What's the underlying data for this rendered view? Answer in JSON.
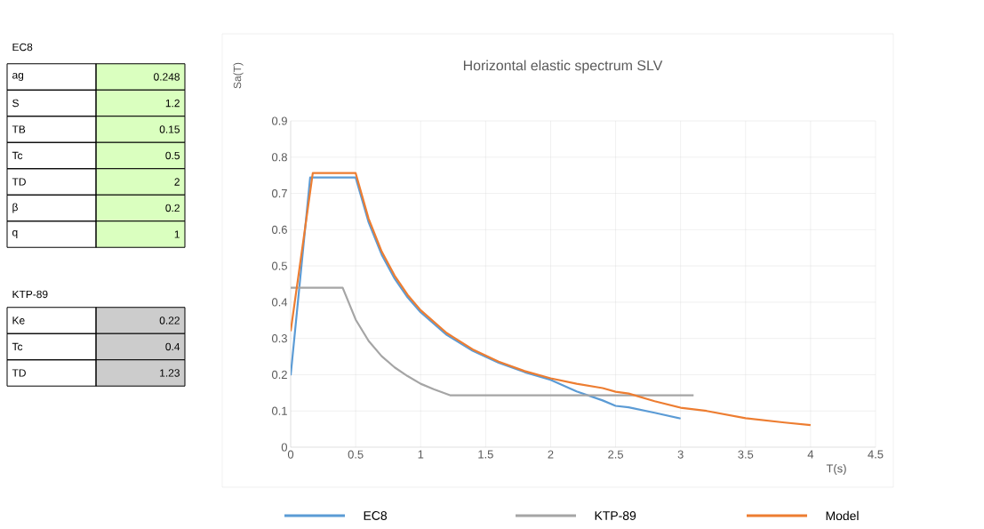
{
  "chart_data": {
    "type": "line",
    "title": "Horizontal elastic spectrum SLV",
    "xlabel": "T(s)",
    "ylabel": "Sa(T)",
    "xlim": [
      0,
      4.5
    ],
    "xticks": [
      0,
      0.5,
      1,
      1.5,
      2,
      2.5,
      3,
      3.5,
      4,
      4.5
    ],
    "ylim": [
      0,
      0.9
    ],
    "yticks": [
      0,
      0.1,
      0.2,
      0.3,
      0.4,
      0.5,
      0.6,
      0.7,
      0.8,
      0.9
    ],
    "grid": true,
    "legend": "bottom",
    "marker": "none",
    "line_style": "solid",
    "series": [
      {
        "name": "EC8",
        "color": "#5b9bd5",
        "x": [
          0,
          0.15,
          0.5,
          0.6,
          0.7,
          0.8,
          0.9,
          1,
          1.2,
          1.4,
          1.6,
          1.8,
          2,
          2.2,
          2.4,
          2.5,
          2.6,
          2.8,
          3
        ],
        "values": [
          0.198,
          0.744,
          0.744,
          0.62,
          0.531,
          0.465,
          0.413,
          0.372,
          0.31,
          0.266,
          0.233,
          0.207,
          0.186,
          0.154,
          0.129,
          0.114,
          0.11,
          0.095,
          0.079
        ]
      },
      {
        "name": "KTP-89",
        "color": "#a5a5a5",
        "x": [
          0,
          0.4,
          0.5,
          0.6,
          0.7,
          0.8,
          0.9,
          1,
          1.1,
          1.23,
          3.1
        ],
        "values": [
          0.44,
          0.44,
          0.352,
          0.293,
          0.251,
          0.22,
          0.196,
          0.175,
          0.16,
          0.143,
          0.143
        ]
      },
      {
        "name": "Model",
        "color": "#ed7d31",
        "x": [
          0,
          0.17,
          0.5,
          0.6,
          0.7,
          0.8,
          0.9,
          1,
          1.2,
          1.4,
          1.6,
          1.8,
          2,
          2.2,
          2.4,
          2.5,
          2.6,
          2.8,
          3,
          3.2,
          3.5,
          3.8,
          4
        ],
        "values": [
          0.32,
          0.756,
          0.756,
          0.63,
          0.54,
          0.473,
          0.42,
          0.378,
          0.315,
          0.27,
          0.236,
          0.21,
          0.19,
          0.175,
          0.163,
          0.153,
          0.148,
          0.127,
          0.109,
          0.1,
          0.08,
          0.068,
          0.061
        ]
      }
    ],
    "annotations": [
      "EC8",
      "ag",
      "0.248",
      "S",
      "1.2",
      "TB",
      "0.15",
      "Tc",
      "0.5",
      "TD",
      "2",
      "β",
      "0.2",
      "q",
      "1",
      "KTP-89",
      "Ke",
      "0.22",
      "Tc",
      "0.4",
      "TD",
      "1.23"
    ]
  }
}
